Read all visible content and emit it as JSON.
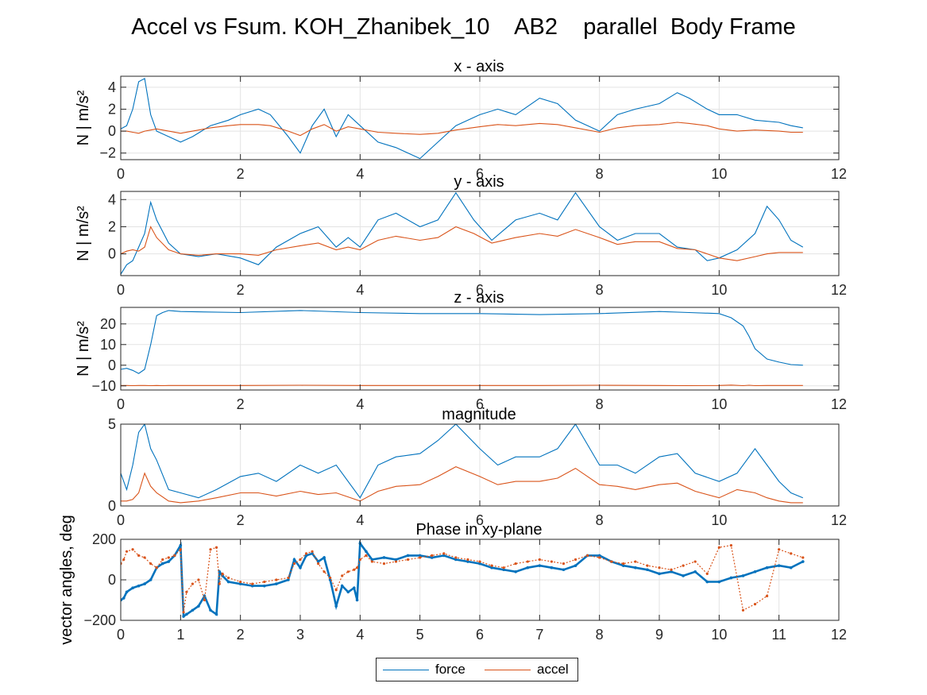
{
  "figure_title": "Accel vs Fsum. KOH_Zhanibek_10    AB2    parallel  Body Frame",
  "legend": [
    {
      "label": "force",
      "color": "#0072BD"
    },
    {
      "label": "accel",
      "color": "#D95319"
    }
  ],
  "chart_data": [
    {
      "type": "line",
      "title": "x - axis",
      "ylabel": "N | m/s²",
      "xlim": [
        0,
        12
      ],
      "ylim": [
        -2.6,
        5.0
      ],
      "xticks": [
        0,
        2,
        4,
        6,
        8,
        10,
        12
      ],
      "yticks": [
        -2,
        0,
        2,
        4
      ],
      "grid": true,
      "x": [
        0,
        0.1,
        0.2,
        0.3,
        0.4,
        0.5,
        0.6,
        0.8,
        1.0,
        1.2,
        1.5,
        1.8,
        2.0,
        2.3,
        2.5,
        2.8,
        3.0,
        3.2,
        3.4,
        3.6,
        3.8,
        4.0,
        4.3,
        4.6,
        5.0,
        5.3,
        5.6,
        6.0,
        6.3,
        6.6,
        7.0,
        7.3,
        7.6,
        8.0,
        8.3,
        8.6,
        9.0,
        9.3,
        9.5,
        9.8,
        10.0,
        10.3,
        10.6,
        11.0,
        11.2,
        11.4
      ],
      "series": [
        {
          "name": "force",
          "values": [
            0.2,
            0.5,
            2.0,
            4.5,
            4.8,
            1.5,
            0.0,
            -0.5,
            -1.0,
            -0.5,
            0.5,
            1.0,
            1.5,
            2.0,
            1.5,
            -0.5,
            -2.0,
            0.5,
            2.0,
            -0.5,
            1.5,
            0.5,
            -1.0,
            -1.5,
            -2.5,
            -1.0,
            0.5,
            1.5,
            2.0,
            1.5,
            3.0,
            2.5,
            1.0,
            0.0,
            1.5,
            2.0,
            2.5,
            3.5,
            3.0,
            2.0,
            1.5,
            1.5,
            1.0,
            0.8,
            0.5,
            0.3
          ]
        },
        {
          "name": "accel",
          "values": [
            0.0,
            0.0,
            -0.1,
            -0.2,
            0.0,
            0.1,
            0.2,
            0.0,
            -0.2,
            0.0,
            0.3,
            0.5,
            0.6,
            0.6,
            0.5,
            0.0,
            -0.4,
            0.2,
            0.6,
            0.0,
            0.4,
            0.2,
            -0.1,
            -0.2,
            -0.3,
            -0.2,
            0.1,
            0.4,
            0.6,
            0.5,
            0.7,
            0.6,
            0.3,
            -0.1,
            0.3,
            0.5,
            0.6,
            0.8,
            0.7,
            0.5,
            0.2,
            0.0,
            0.1,
            0.0,
            -0.1,
            -0.1
          ]
        }
      ]
    },
    {
      "type": "line",
      "title": "y - axis",
      "ylabel": "N | m/s²",
      "xlim": [
        0,
        12
      ],
      "ylim": [
        -1.6,
        4.6
      ],
      "xticks": [
        0,
        2,
        4,
        6,
        8,
        10,
        12
      ],
      "yticks": [
        0,
        2,
        4
      ],
      "grid": true,
      "x": [
        0,
        0.1,
        0.2,
        0.3,
        0.4,
        0.5,
        0.6,
        0.8,
        1.0,
        1.3,
        1.6,
        2.0,
        2.3,
        2.6,
        3.0,
        3.3,
        3.6,
        3.8,
        4.0,
        4.3,
        4.6,
        5.0,
        5.3,
        5.6,
        5.9,
        6.2,
        6.6,
        7.0,
        7.3,
        7.6,
        8.0,
        8.3,
        8.6,
        9.0,
        9.3,
        9.6,
        9.8,
        10.0,
        10.3,
        10.6,
        10.8,
        11.0,
        11.2,
        11.4
      ],
      "series": [
        {
          "name": "force",
          "values": [
            -1.5,
            -0.8,
            -0.5,
            0.5,
            1.5,
            3.8,
            2.5,
            0.8,
            0.0,
            -0.2,
            0.0,
            -0.3,
            -0.8,
            0.5,
            1.5,
            2.0,
            0.5,
            1.2,
            0.5,
            2.5,
            3.0,
            2.0,
            2.5,
            4.5,
            2.5,
            1.0,
            2.5,
            3.0,
            2.5,
            4.5,
            2.0,
            1.0,
            1.5,
            1.5,
            0.5,
            0.3,
            -0.5,
            -0.3,
            0.3,
            1.5,
            3.5,
            2.5,
            1.0,
            0.5
          ]
        },
        {
          "name": "accel",
          "values": [
            0.0,
            0.2,
            0.3,
            0.2,
            0.5,
            2.0,
            1.2,
            0.3,
            0.0,
            -0.1,
            0.0,
            0.0,
            -0.1,
            0.3,
            0.6,
            0.8,
            0.3,
            0.5,
            0.3,
            1.0,
            1.3,
            1.0,
            1.2,
            2.0,
            1.5,
            0.8,
            1.2,
            1.5,
            1.3,
            1.8,
            1.2,
            0.7,
            0.9,
            0.9,
            0.4,
            0.3,
            0.0,
            -0.3,
            -0.5,
            -0.2,
            0.0,
            0.1,
            0.1,
            0.1
          ]
        }
      ]
    },
    {
      "type": "line",
      "title": "z - axis",
      "ylabel": "N | m/s²",
      "xlim": [
        0,
        12
      ],
      "ylim": [
        -12,
        28
      ],
      "xticks": [
        0,
        2,
        4,
        6,
        8,
        10,
        12
      ],
      "yticks": [
        -10,
        0,
        10,
        20
      ],
      "grid": true,
      "x": [
        0,
        0.1,
        0.2,
        0.3,
        0.4,
        0.5,
        0.6,
        0.7,
        0.8,
        1.0,
        2.0,
        3.0,
        4.0,
        5.0,
        6.0,
        7.0,
        8.0,
        9.0,
        9.5,
        10.0,
        10.2,
        10.4,
        10.5,
        10.6,
        10.8,
        11.0,
        11.2,
        11.4
      ],
      "series": [
        {
          "name": "force",
          "values": [
            -2.0,
            -1.5,
            -2.5,
            -4.0,
            -2.0,
            10.0,
            24.0,
            25.5,
            26.5,
            26.0,
            25.5,
            26.5,
            25.5,
            25.0,
            25.0,
            24.5,
            25.0,
            26.0,
            25.5,
            25.0,
            23.0,
            19.0,
            14.0,
            8.0,
            3.0,
            1.5,
            0.3,
            0.0
          ]
        },
        {
          "name": "accel",
          "values": [
            -9.8,
            -9.8,
            -9.9,
            -9.8,
            -9.8,
            -9.9,
            -9.8,
            -9.9,
            -9.8,
            -9.8,
            -9.8,
            -9.7,
            -9.8,
            -9.8,
            -9.8,
            -9.8,
            -9.7,
            -9.8,
            -9.9,
            -9.8,
            -9.6,
            -9.9,
            -9.7,
            -9.9,
            -9.8,
            -9.8,
            -9.8,
            -9.8
          ]
        }
      ]
    },
    {
      "type": "line",
      "title": "magnitude",
      "ylabel": "",
      "xlim": [
        0,
        12
      ],
      "ylim": [
        0,
        5
      ],
      "xticks": [
        0,
        2,
        4,
        6,
        8,
        10,
        12
      ],
      "yticks": [
        0,
        5
      ],
      "grid": true,
      "x": [
        0,
        0.1,
        0.2,
        0.3,
        0.4,
        0.5,
        0.6,
        0.8,
        1.0,
        1.3,
        1.6,
        2.0,
        2.3,
        2.6,
        3.0,
        3.3,
        3.6,
        4.0,
        4.3,
        4.6,
        5.0,
        5.3,
        5.6,
        6.0,
        6.3,
        6.6,
        7.0,
        7.3,
        7.6,
        8.0,
        8.3,
        8.6,
        9.0,
        9.3,
        9.6,
        10.0,
        10.3,
        10.6,
        10.8,
        11.0,
        11.2,
        11.4
      ],
      "series": [
        {
          "name": "force",
          "values": [
            2.0,
            1.0,
            2.5,
            4.5,
            5.0,
            3.5,
            2.8,
            1.0,
            0.8,
            0.5,
            1.0,
            1.8,
            2.0,
            1.5,
            2.5,
            2.0,
            2.5,
            0.5,
            2.5,
            3.0,
            3.2,
            4.0,
            5.0,
            3.5,
            2.5,
            3.0,
            3.0,
            3.5,
            5.0,
            2.5,
            2.5,
            2.0,
            3.0,
            3.2,
            2.0,
            1.5,
            2.0,
            3.5,
            2.5,
            1.5,
            0.8,
            0.5
          ]
        },
        {
          "name": "accel",
          "values": [
            0.3,
            0.3,
            0.4,
            0.8,
            2.0,
            1.2,
            0.8,
            0.3,
            0.2,
            0.3,
            0.5,
            0.8,
            0.8,
            0.6,
            0.9,
            0.7,
            0.8,
            0.3,
            0.9,
            1.2,
            1.3,
            1.8,
            2.4,
            1.8,
            1.3,
            1.5,
            1.5,
            1.7,
            2.3,
            1.3,
            1.2,
            1.0,
            1.3,
            1.4,
            0.9,
            0.5,
            1.0,
            0.8,
            0.5,
            0.3,
            0.2,
            0.2
          ]
        }
      ]
    },
    {
      "type": "scatter",
      "title": "Phase in xy-plane",
      "ylabel": "vector angles, deg",
      "xlim": [
        0,
        12
      ],
      "ylim": [
        -200,
        200
      ],
      "xticks": [
        0,
        1,
        2,
        3,
        4,
        5,
        6,
        7,
        8,
        9,
        10,
        11,
        12
      ],
      "yticks": [
        -200,
        0,
        200
      ],
      "grid": true,
      "x": [
        0.0,
        0.05,
        0.1,
        0.2,
        0.3,
        0.4,
        0.5,
        0.6,
        0.7,
        0.8,
        0.9,
        1.0,
        1.05,
        1.1,
        1.2,
        1.3,
        1.4,
        1.5,
        1.6,
        1.65,
        1.7,
        1.8,
        2.0,
        2.2,
        2.4,
        2.6,
        2.8,
        2.9,
        3.0,
        3.1,
        3.2,
        3.3,
        3.4,
        3.5,
        3.6,
        3.7,
        3.8,
        3.9,
        3.95,
        4.0,
        4.1,
        4.2,
        4.4,
        4.6,
        4.8,
        5.0,
        5.2,
        5.4,
        5.6,
        5.8,
        6.0,
        6.2,
        6.4,
        6.6,
        6.8,
        7.0,
        7.2,
        7.4,
        7.6,
        7.8,
        8.0,
        8.2,
        8.4,
        8.6,
        8.8,
        9.0,
        9.2,
        9.4,
        9.6,
        9.8,
        10.0,
        10.2,
        10.4,
        10.6,
        10.8,
        11.0,
        11.2,
        11.4
      ],
      "series": [
        {
          "name": "force",
          "values": [
            -100,
            -90,
            -60,
            -40,
            -30,
            -20,
            0,
            60,
            80,
            90,
            120,
            170,
            -180,
            -170,
            -150,
            -130,
            -80,
            -150,
            -170,
            40,
            20,
            -10,
            -20,
            -30,
            -30,
            -20,
            0,
            100,
            60,
            120,
            130,
            90,
            110,
            0,
            -130,
            -30,
            -60,
            -40,
            -100,
            180,
            140,
            100,
            110,
            100,
            120,
            120,
            110,
            120,
            100,
            90,
            80,
            60,
            50,
            40,
            60,
            70,
            60,
            50,
            70,
            120,
            120,
            90,
            70,
            60,
            50,
            30,
            40,
            20,
            40,
            -10,
            -10,
            10,
            20,
            40,
            60,
            70,
            60,
            90
          ]
        },
        {
          "name": "accel",
          "values": [
            80,
            100,
            140,
            150,
            120,
            110,
            80,
            60,
            100,
            110,
            120,
            150,
            -160,
            -60,
            -20,
            0,
            -100,
            150,
            160,
            -20,
            30,
            10,
            -10,
            -20,
            -10,
            0,
            10,
            80,
            100,
            130,
            140,
            80,
            40,
            10,
            -50,
            20,
            40,
            50,
            60,
            100,
            120,
            90,
            80,
            90,
            100,
            110,
            120,
            130,
            110,
            100,
            90,
            70,
            60,
            80,
            90,
            100,
            90,
            80,
            100,
            120,
            110,
            90,
            80,
            90,
            70,
            60,
            50,
            70,
            90,
            30,
            160,
            170,
            -150,
            -120,
            -80,
            150,
            130,
            110
          ]
        }
      ]
    }
  ]
}
